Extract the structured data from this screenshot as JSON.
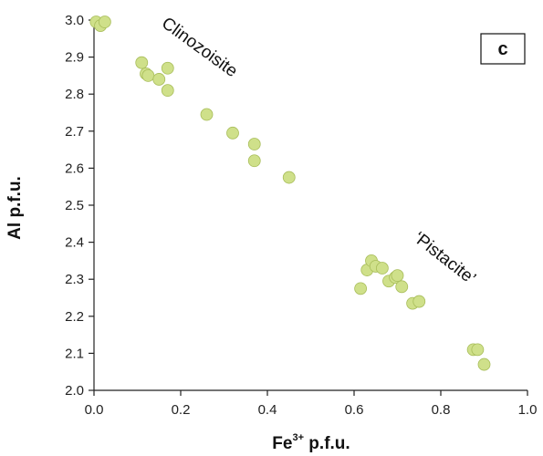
{
  "chart_data": {
    "type": "scatter",
    "xlabel": "Fe",
    "xlabel_sup": "3+",
    "xlabel_suffix": " p.f.u.",
    "ylabel": "Al p.f.u.",
    "xlim": [
      0.0,
      1.0
    ],
    "ylim": [
      2.0,
      3.0
    ],
    "x_ticks": [
      "0.0",
      "0.2",
      "0.4",
      "0.6",
      "0.8",
      "1.0"
    ],
    "y_ticks": [
      "2.0",
      "2.1",
      "2.2",
      "2.3",
      "2.4",
      "2.5",
      "2.6",
      "2.7",
      "2.8",
      "2.9",
      "3.0"
    ],
    "grid": false,
    "panel_label": "c",
    "annotations": [
      {
        "text": "Clinozoisite",
        "x": 0.3,
        "y": 2.88
      },
      {
        "text": "‘Pistacite’",
        "x": 0.76,
        "y": 2.29
      }
    ],
    "marker_color": "#cfe08a",
    "marker_edge_color": "#a8bd5a",
    "points": [
      {
        "x": 0.005,
        "y": 2.995
      },
      {
        "x": 0.015,
        "y": 2.985
      },
      {
        "x": 0.025,
        "y": 2.995
      },
      {
        "x": 0.11,
        "y": 2.885
      },
      {
        "x": 0.12,
        "y": 2.855
      },
      {
        "x": 0.125,
        "y": 2.85
      },
      {
        "x": 0.15,
        "y": 2.84
      },
      {
        "x": 0.17,
        "y": 2.87
      },
      {
        "x": 0.17,
        "y": 2.81
      },
      {
        "x": 0.26,
        "y": 2.745
      },
      {
        "x": 0.32,
        "y": 2.695
      },
      {
        "x": 0.37,
        "y": 2.665
      },
      {
        "x": 0.37,
        "y": 2.62
      },
      {
        "x": 0.45,
        "y": 2.575
      },
      {
        "x": 0.615,
        "y": 2.275
      },
      {
        "x": 0.63,
        "y": 2.325
      },
      {
        "x": 0.64,
        "y": 2.35
      },
      {
        "x": 0.65,
        "y": 2.335
      },
      {
        "x": 0.665,
        "y": 2.33
      },
      {
        "x": 0.68,
        "y": 2.295
      },
      {
        "x": 0.695,
        "y": 2.305
      },
      {
        "x": 0.7,
        "y": 2.31
      },
      {
        "x": 0.71,
        "y": 2.28
      },
      {
        "x": 0.735,
        "y": 2.235
      },
      {
        "x": 0.75,
        "y": 2.24
      },
      {
        "x": 0.875,
        "y": 2.11
      },
      {
        "x": 0.885,
        "y": 2.11
      },
      {
        "x": 0.9,
        "y": 2.07
      }
    ]
  }
}
